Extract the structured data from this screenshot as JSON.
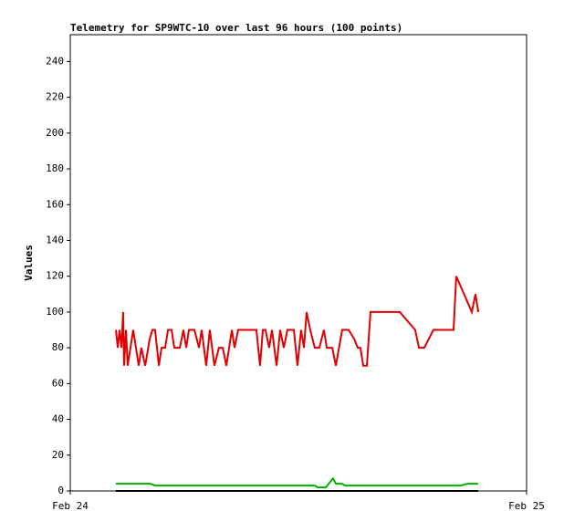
{
  "chart_data": {
    "type": "line",
    "title": "Telemetry for SP9WTC-10 over last 96 hours (100 points)",
    "ylabel": "Values",
    "xlim": [
      0,
      24
    ],
    "xticks": [
      {
        "value": 0,
        "label": "Feb 24"
      },
      {
        "value": 24,
        "label": "Feb 25"
      }
    ],
    "ylim": [
      0,
      255
    ],
    "yticks": [
      0,
      20,
      40,
      60,
      80,
      100,
      120,
      140,
      160,
      180,
      200,
      220,
      240
    ],
    "series": [
      {
        "color": "#e00000",
        "x": [
          2.4,
          2.5,
          2.59,
          2.69,
          2.78,
          2.83,
          2.93,
          3.02,
          3.31,
          3.6,
          3.74,
          3.94,
          4.18,
          4.32,
          4.46,
          4.66,
          4.8,
          4.99,
          5.14,
          5.33,
          5.47,
          5.76,
          5.95,
          6.1,
          6.24,
          6.53,
          6.77,
          6.91,
          7.15,
          7.34,
          7.58,
          7.82,
          8.02,
          8.21,
          8.5,
          8.64,
          8.83,
          9.79,
          9.98,
          10.13,
          10.27,
          10.46,
          10.61,
          10.85,
          11.04,
          11.23,
          11.42,
          11.76,
          11.95,
          12.14,
          12.29,
          12.43,
          12.62,
          12.86,
          13.1,
          13.34,
          13.49,
          13.78,
          13.97,
          14.3,
          14.64,
          14.93,
          15.12,
          15.26,
          15.41,
          15.6,
          15.79,
          17.33,
          18.14,
          18.34,
          18.62,
          19.1,
          20.16,
          20.3,
          21.12,
          21.31,
          21.46
        ],
        "values": [
          90,
          80,
          90,
          80,
          100,
          70,
          90,
          70,
          90,
          70,
          80,
          70,
          85,
          90,
          90,
          70,
          80,
          80,
          90,
          90,
          80,
          80,
          90,
          80,
          90,
          90,
          80,
          90,
          70,
          90,
          70,
          80,
          80,
          70,
          90,
          80,
          90,
          90,
          70,
          90,
          90,
          80,
          90,
          70,
          90,
          80,
          90,
          90,
          70,
          90,
          80,
          100,
          90,
          80,
          80,
          90,
          80,
          80,
          70,
          90,
          90,
          85,
          80,
          80,
          70,
          70,
          100,
          100,
          90,
          80,
          80,
          90,
          90,
          120,
          100,
          110,
          100
        ]
      },
      {
        "color": "#00b000",
        "x": [
          2.4,
          4.22,
          4.46,
          12.86,
          13.01,
          13.44,
          13.82,
          13.97,
          14.3,
          14.45,
          20.54,
          20.88,
          21.46
        ],
        "values": [
          4,
          4,
          3,
          3,
          2,
          2,
          7,
          4,
          4,
          3,
          3,
          4,
          4
        ]
      },
      {
        "color": "#000000",
        "x": [
          2.4,
          21.46
        ],
        "values": [
          0,
          0
        ]
      }
    ]
  }
}
